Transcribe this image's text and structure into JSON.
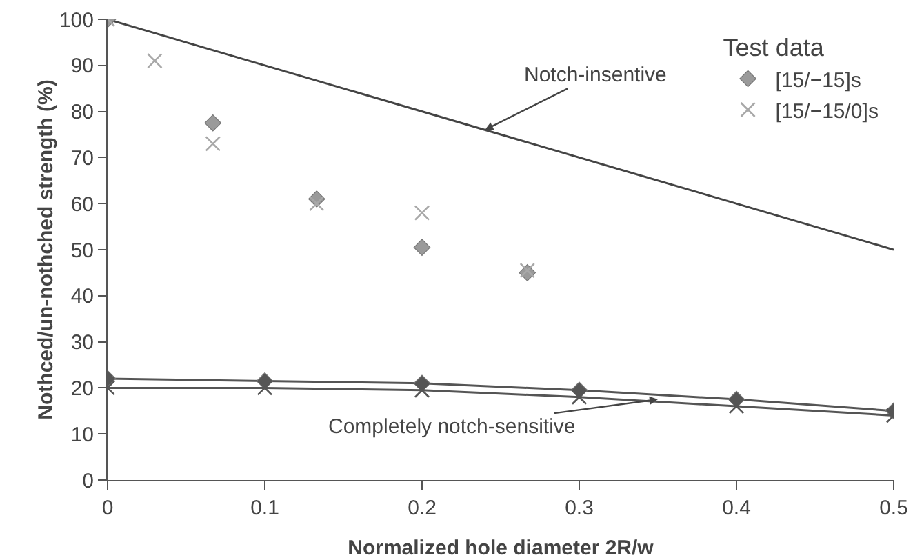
{
  "chart_data": {
    "type": "scatter",
    "xlabel": "Normalized hole diameter 2R/w",
    "ylabel": "Nothced/un-nothched strength (%)",
    "legend_title": "Test data",
    "legend": "top right",
    "grid": false,
    "xlim": [
      0,
      0.5
    ],
    "xticks": [
      0,
      0.1,
      0.2,
      0.3,
      0.4,
      0.5
    ],
    "ylim": [
      0,
      100
    ],
    "yticks": [
      0,
      10,
      20,
      30,
      40,
      50,
      60,
      70,
      80,
      90,
      100
    ],
    "series": [
      {
        "type": "line",
        "color": "#444444",
        "marker": "none",
        "x": [
          0,
          0.5
        ],
        "values": [
          100,
          50
        ]
      },
      {
        "type": "line",
        "color": "#555555",
        "marker": "diamond",
        "x": [
          0,
          0.1,
          0.2,
          0.3,
          0.4,
          0.5
        ],
        "values": [
          22,
          21.5,
          21,
          19.5,
          17.5,
          15
        ]
      },
      {
        "type": "line",
        "color": "#555555",
        "marker": "cross",
        "x": [
          0,
          0.1,
          0.2,
          0.3,
          0.4,
          0.5
        ],
        "values": [
          20,
          20,
          19.5,
          18,
          16,
          14
        ]
      },
      {
        "name": "[15/−15]s",
        "color": "#9a9a9a",
        "marker": "diamond",
        "x": [
          0,
          0.067,
          0.133,
          0.2,
          0.267
        ],
        "values": [
          100,
          77.5,
          61,
          50.5,
          45
        ]
      },
      {
        "name": "[15/−15/0]s",
        "color": "#a8a8a8",
        "marker": "cross",
        "x": [
          0,
          0.03,
          0.067,
          0.133,
          0.2,
          0.267
        ],
        "values": [
          100,
          91,
          73,
          60,
          58,
          45.5
        ]
      }
    ],
    "annotations": [
      {
        "text": "Notch-insentive",
        "x": 0.24,
        "y": 76
      },
      {
        "text": "Completely notch-sensitive",
        "x": 0.35,
        "y": 17.5
      }
    ]
  }
}
